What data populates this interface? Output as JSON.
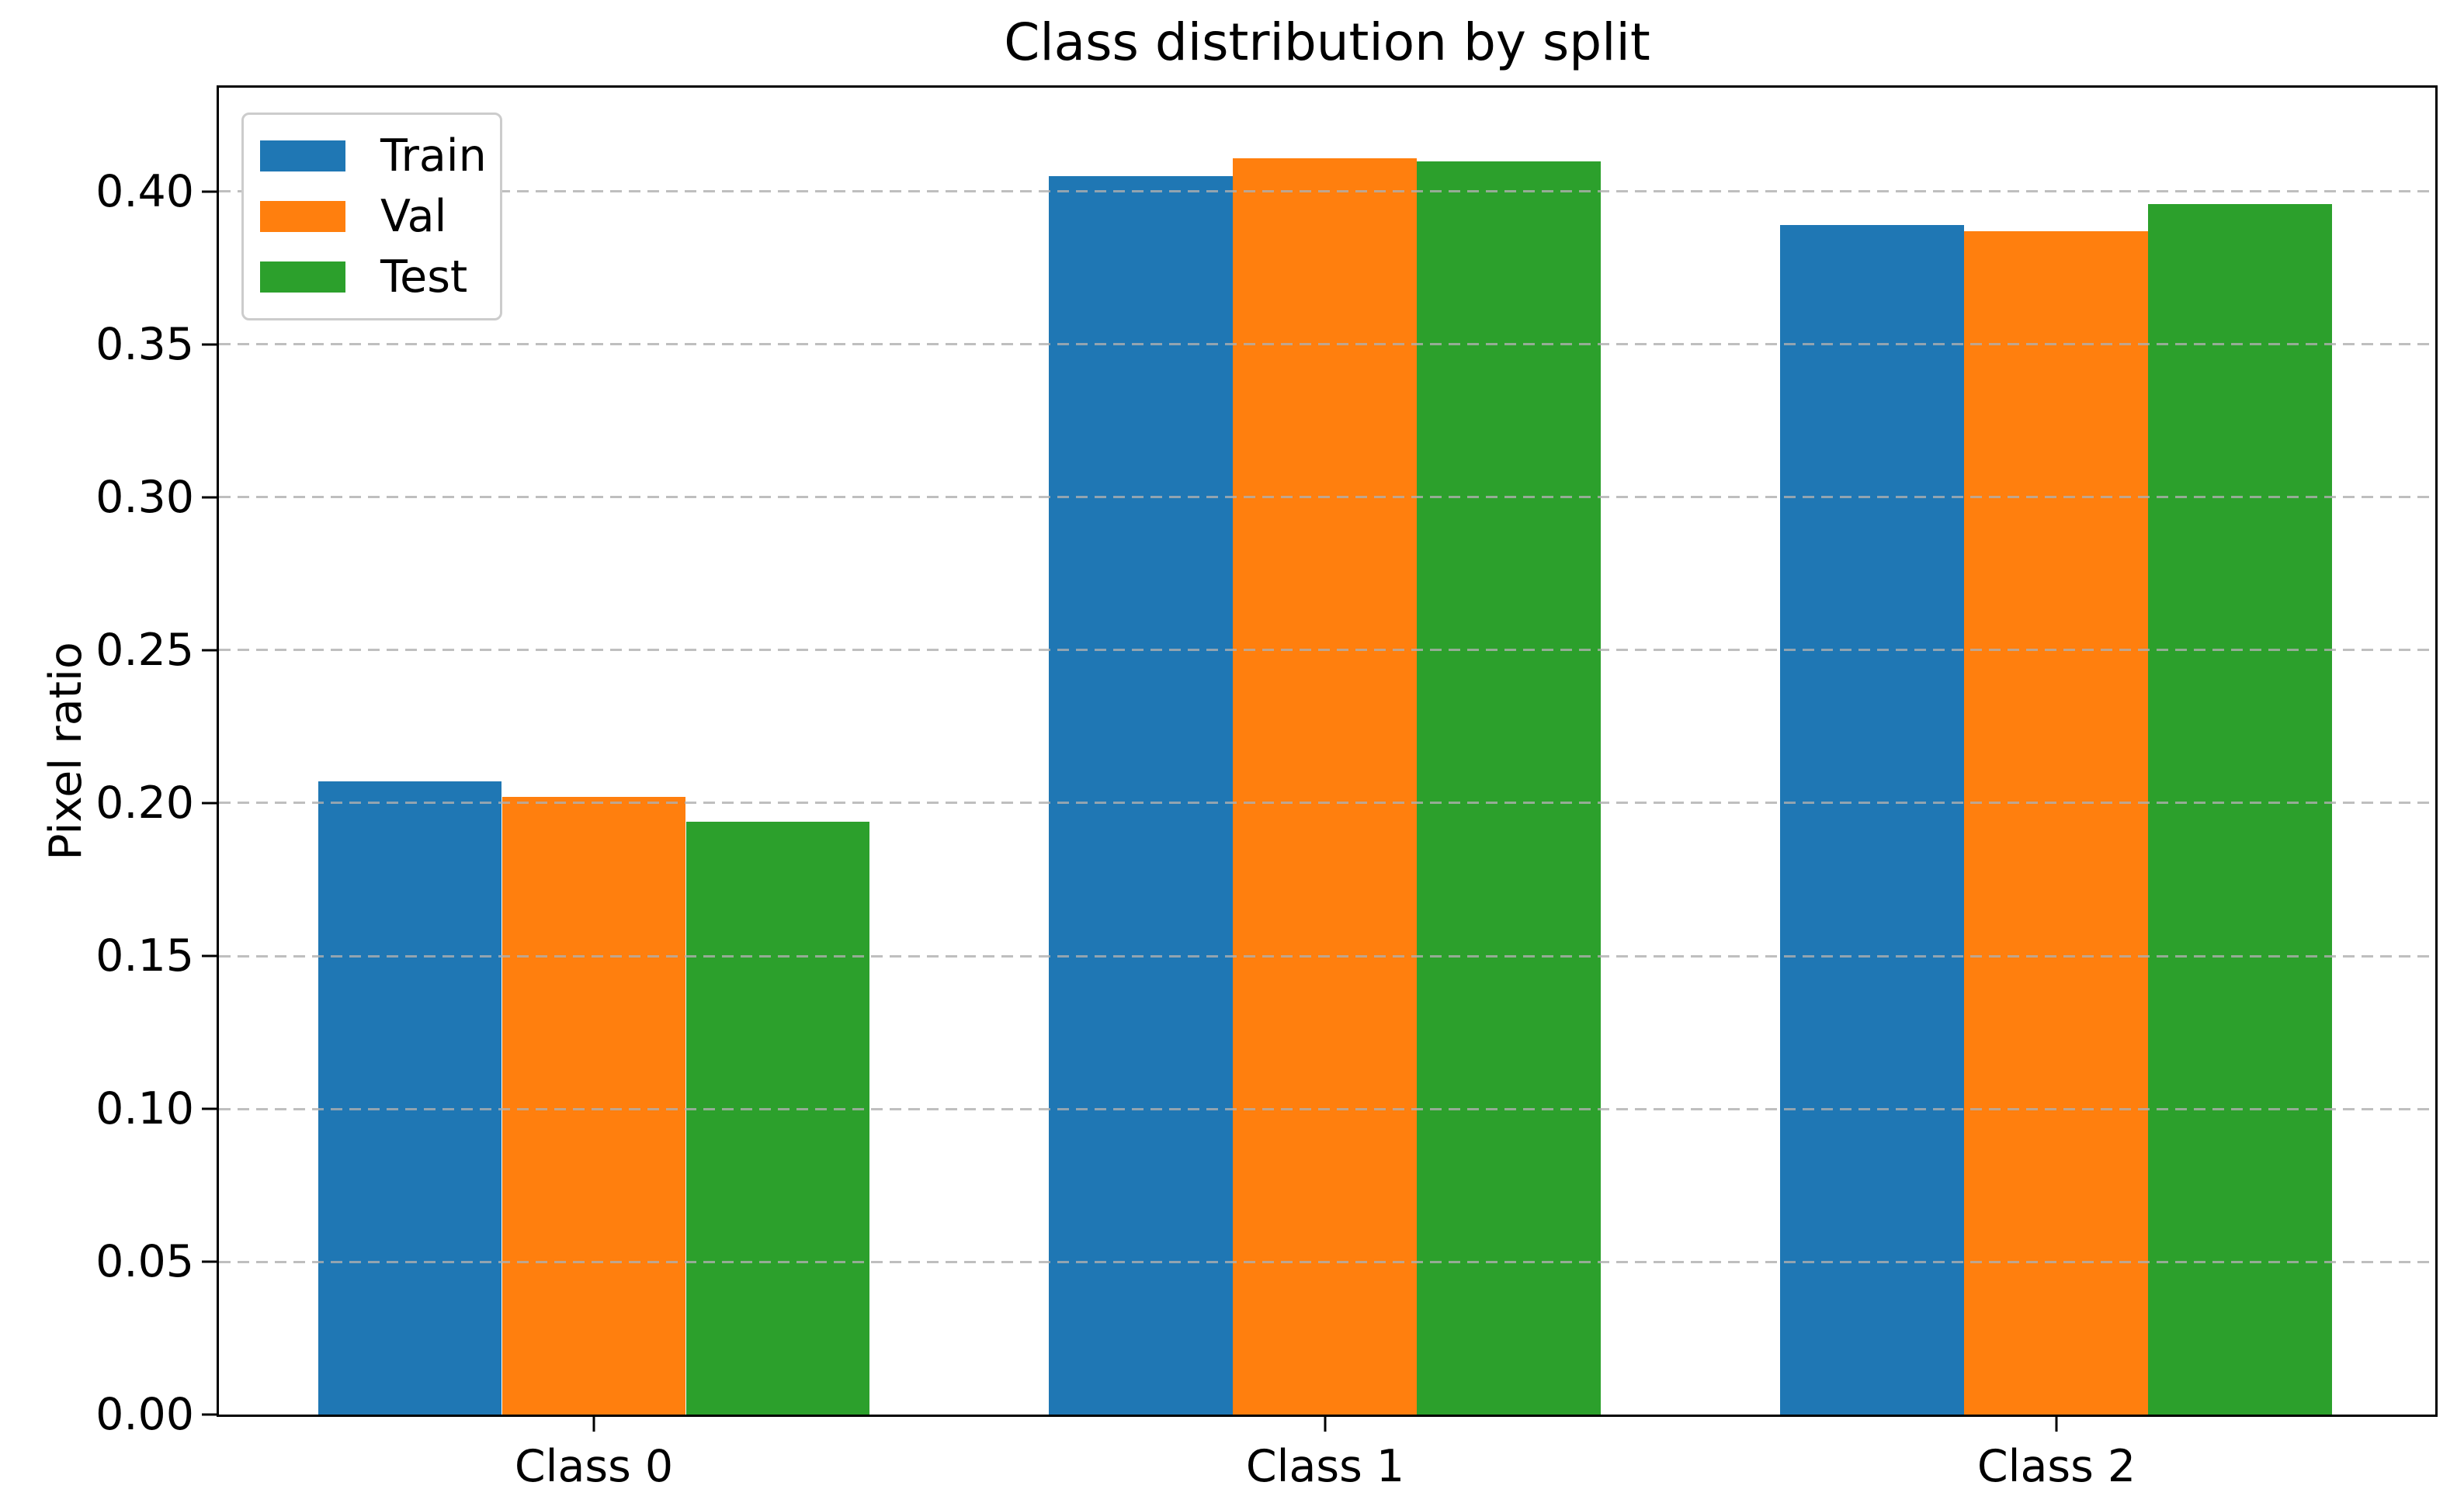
{
  "chart_data": {
    "type": "bar",
    "title": "Class distribution by split",
    "xlabel": "",
    "ylabel": "Pixel ratio",
    "categories": [
      "Class 0",
      "Class 1",
      "Class 2"
    ],
    "series": [
      {
        "name": "Train",
        "color": "#1f77b4",
        "values": [
          0.207,
          0.405,
          0.389
        ]
      },
      {
        "name": "Val",
        "color": "#ff7f0e",
        "values": [
          0.202,
          0.411,
          0.387
        ]
      },
      {
        "name": "Test",
        "color": "#2ca02c",
        "values": [
          0.194,
          0.41,
          0.396
        ]
      }
    ],
    "y_ticks": [
      0.0,
      0.05,
      0.1,
      0.15,
      0.2,
      0.25,
      0.3,
      0.35,
      0.4
    ],
    "y_tick_labels": [
      "0.00",
      "0.05",
      "0.10",
      "0.15",
      "0.20",
      "0.25",
      "0.30",
      "0.35",
      "0.40"
    ],
    "ylim": [
      0,
      0.434
    ],
    "grid": "y-dashed",
    "grid_color": "#b0b0b0",
    "legend_position": "upper-left",
    "background_color": "#ffffff",
    "spine_color": "#000000"
  }
}
